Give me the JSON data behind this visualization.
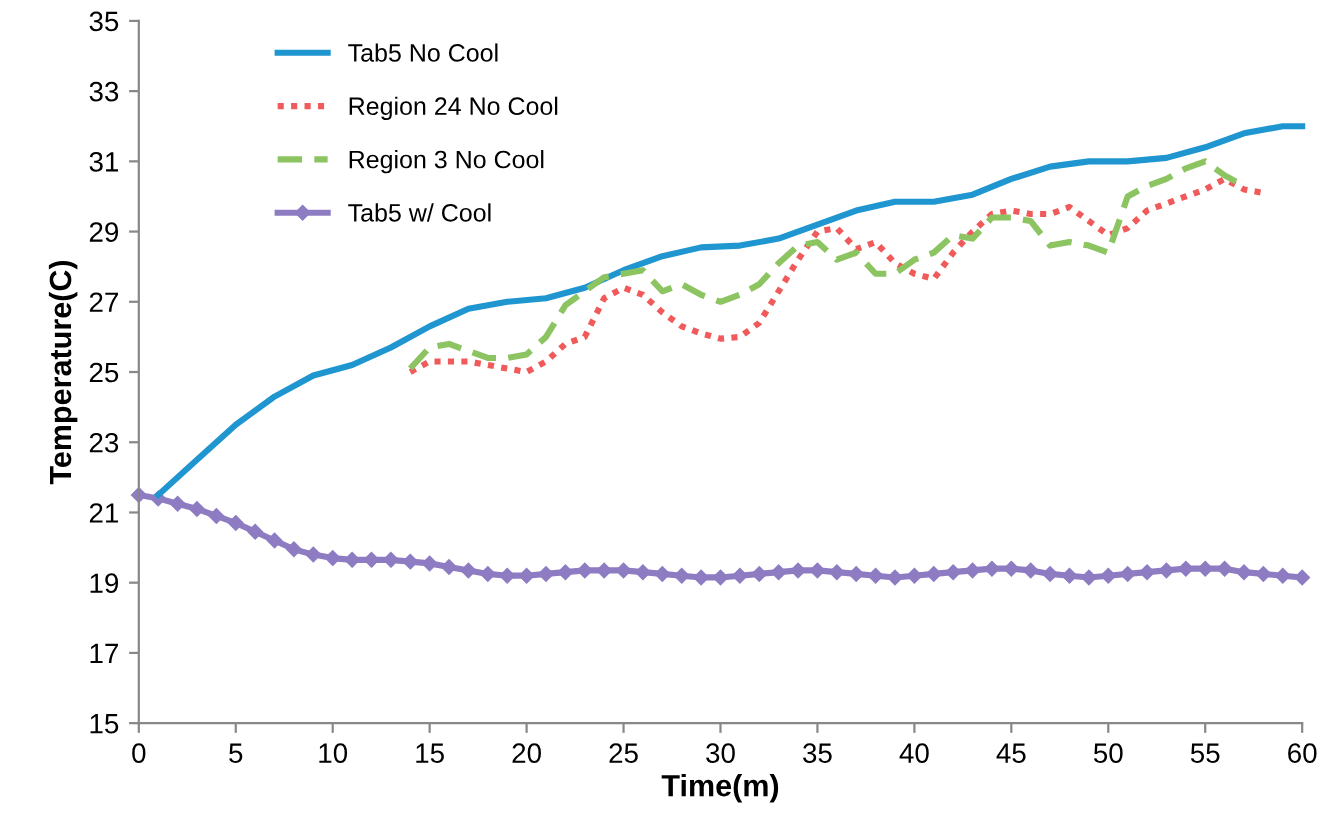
{
  "chart_data": {
    "type": "line",
    "xlabel": "Time(m)",
    "ylabel": "Temperature(C)",
    "xlim": [
      0,
      60
    ],
    "ylim": [
      15,
      35
    ],
    "xticks": [
      0,
      5,
      10,
      15,
      20,
      25,
      30,
      35,
      40,
      45,
      50,
      55,
      60
    ],
    "yticks": [
      15,
      17,
      19,
      21,
      23,
      25,
      27,
      29,
      31,
      33,
      35
    ],
    "grid": false,
    "legend": "top left",
    "series": [
      {
        "name": "Tab5 No Cool",
        "color": "#1f96d0",
        "line_style": "solid",
        "marker": "none",
        "x": [
          1,
          3,
          5,
          7,
          9,
          11,
          13,
          15,
          17,
          19,
          21,
          23,
          25,
          27,
          29,
          31,
          33,
          35,
          37,
          39,
          41,
          43,
          45,
          47,
          49,
          51,
          53,
          55,
          57,
          59,
          60
        ],
        "values": [
          21.5,
          22.5,
          23.5,
          24.3,
          24.9,
          25.2,
          25.7,
          26.3,
          26.8,
          27.0,
          27.1,
          27.4,
          27.9,
          28.3,
          28.55,
          28.6,
          28.8,
          29.2,
          29.6,
          29.85,
          29.85,
          30.05,
          30.5,
          30.85,
          31.0,
          31.0,
          31.1,
          31.4,
          31.8,
          32.0,
          32.0
        ]
      },
      {
        "name": "Region 24 No Cool",
        "color": "#f05a5a",
        "line_style": "dotted",
        "marker": "none",
        "x": [
          14,
          15,
          17,
          19,
          20,
          21,
          22,
          23,
          24,
          25,
          26,
          27,
          28,
          29,
          30,
          31,
          32,
          33,
          34,
          35,
          36,
          37,
          38,
          39,
          40,
          41,
          42,
          43,
          44,
          45,
          46,
          47,
          48,
          49,
          50,
          51,
          52,
          53,
          54,
          55,
          56,
          57,
          58
        ],
        "values": [
          25.0,
          25.3,
          25.3,
          25.1,
          25.0,
          25.3,
          25.8,
          26.0,
          27.1,
          27.4,
          27.2,
          26.7,
          26.3,
          26.1,
          25.95,
          26.0,
          26.4,
          27.3,
          28.2,
          29.0,
          29.1,
          28.5,
          28.7,
          28.1,
          27.8,
          27.65,
          28.4,
          29.0,
          29.5,
          29.6,
          29.5,
          29.5,
          29.7,
          29.3,
          28.9,
          29.1,
          29.6,
          29.8,
          30.0,
          30.2,
          30.5,
          30.2,
          30.1
        ]
      },
      {
        "name": "Region 3 No Cool",
        "color": "#8cc461",
        "line_style": "dashed",
        "marker": "none",
        "x": [
          14,
          15,
          16,
          17,
          18,
          19,
          20,
          21,
          22,
          23,
          24,
          25,
          26,
          27,
          28,
          29,
          30,
          31,
          32,
          33,
          34,
          35,
          36,
          37,
          38,
          39,
          40,
          41,
          42,
          43,
          44,
          45,
          46,
          47,
          48,
          49,
          50,
          51,
          52,
          53,
          54,
          55,
          56,
          57
        ],
        "values": [
          25.1,
          25.7,
          25.8,
          25.6,
          25.4,
          25.4,
          25.5,
          26.0,
          26.9,
          27.3,
          27.7,
          27.8,
          27.9,
          27.3,
          27.5,
          27.2,
          27.0,
          27.2,
          27.5,
          28.1,
          28.6,
          28.7,
          28.2,
          28.4,
          27.8,
          27.8,
          28.2,
          28.4,
          28.9,
          28.8,
          29.4,
          29.4,
          29.3,
          28.6,
          28.7,
          28.6,
          28.4,
          30.0,
          30.3,
          30.5,
          30.8,
          31.0,
          30.6,
          30.3
        ]
      },
      {
        "name": "Tab5 w/ Cool",
        "color": "#8e7cc3",
        "line_style": "solid",
        "marker": "diamond",
        "x": [
          0,
          1,
          2,
          3,
          4,
          5,
          6,
          7,
          8,
          9,
          10,
          11,
          12,
          13,
          14,
          15,
          16,
          17,
          18,
          19,
          20,
          21,
          22,
          23,
          24,
          25,
          26,
          27,
          28,
          29,
          30,
          31,
          32,
          33,
          34,
          35,
          36,
          37,
          38,
          39,
          40,
          41,
          42,
          43,
          44,
          45,
          46,
          47,
          48,
          49,
          50,
          51,
          52,
          53,
          54,
          55,
          56,
          57,
          58,
          59,
          60
        ],
        "values": [
          21.5,
          21.4,
          21.25,
          21.1,
          20.9,
          20.7,
          20.45,
          20.2,
          19.95,
          19.8,
          19.7,
          19.65,
          19.65,
          19.65,
          19.6,
          19.55,
          19.45,
          19.35,
          19.25,
          19.2,
          19.2,
          19.25,
          19.3,
          19.35,
          19.35,
          19.35,
          19.3,
          19.25,
          19.2,
          19.15,
          19.15,
          19.2,
          19.25,
          19.3,
          19.35,
          19.35,
          19.3,
          19.25,
          19.2,
          19.15,
          19.2,
          19.25,
          19.3,
          19.35,
          19.4,
          19.4,
          19.35,
          19.25,
          19.2,
          19.15,
          19.2,
          19.25,
          19.3,
          19.35,
          19.4,
          19.4,
          19.4,
          19.3,
          19.25,
          19.2,
          19.15
        ]
      }
    ]
  }
}
